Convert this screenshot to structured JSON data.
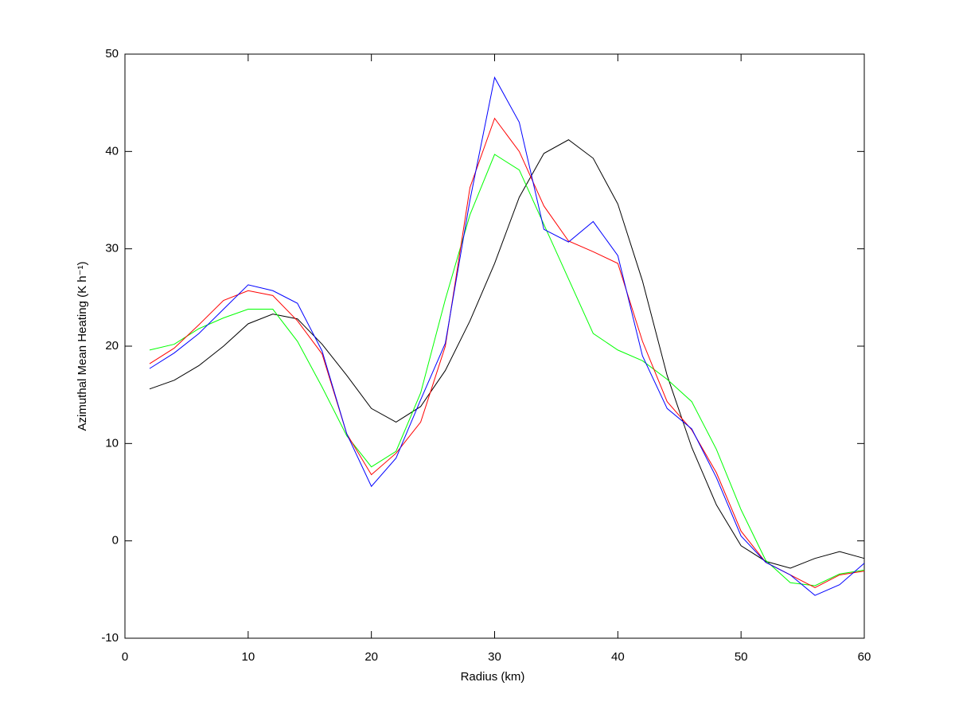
{
  "chart_data": {
    "type": "line",
    "x_label": "Radius (km)",
    "y_label": "Azimuthal Mean Heating (K h⁻¹)",
    "x": [
      2,
      4,
      6,
      8,
      10,
      12,
      14,
      16,
      18,
      20,
      22,
      24,
      26,
      28,
      30,
      32,
      34,
      36,
      38,
      40,
      42,
      44,
      46,
      48,
      50,
      52,
      54,
      56,
      58,
      60
    ],
    "series": [
      {
        "color": "#000000",
        "values": [
          15.6,
          16.5,
          18,
          20,
          22.3,
          23.3,
          22.8,
          20.2,
          17,
          13.6,
          12.2,
          13.8,
          17.5,
          22.6,
          28.5,
          35.3,
          39.8,
          41.2,
          39.3,
          34.6,
          26.7,
          17,
          9.6,
          3.7,
          -0.5,
          -2.1,
          -2.8,
          -1.8,
          -1.1,
          -1.8
        ]
      },
      {
        "color": "#00ff00",
        "values": [
          19.6,
          20.2,
          21.8,
          22.9,
          23.8,
          23.8,
          20.5,
          15.8,
          10.8,
          7.6,
          9.2,
          15.2,
          24.8,
          33.5,
          39.7,
          38.1,
          32.5,
          26.9,
          21.3,
          19.6,
          18.5,
          16.6,
          14.3,
          9.4,
          3.2,
          -2,
          -4.3,
          -4.6,
          -3.4,
          -3
        ]
      },
      {
        "color": "#ff0000",
        "values": [
          18.2,
          19.8,
          22.2,
          24.7,
          25.7,
          25.2,
          22.6,
          19.2,
          11,
          6.8,
          9,
          12.2,
          20,
          36.3,
          43.4,
          40,
          34.4,
          30.8,
          29.7,
          28.5,
          20.5,
          14.3,
          11.4,
          7,
          1,
          -2.2,
          -3.5,
          -4.8,
          -3.5,
          -3.1
        ]
      },
      {
        "color": "#0000ff",
        "values": [
          17.7,
          19.3,
          21.3,
          23.8,
          26.3,
          25.7,
          24.4,
          19.5,
          11,
          5.6,
          8.5,
          14.5,
          20.3,
          35,
          47.6,
          43,
          32,
          30.7,
          32.8,
          29.3,
          19,
          13.6,
          11.5,
          6.5,
          0.5,
          -2.2,
          -3.5,
          -5.6,
          -4.5,
          -2.3
        ]
      }
    ],
    "xlim": [
      0,
      60
    ],
    "xticks": [
      0,
      10,
      20,
      30,
      40,
      50,
      60
    ],
    "ylim": [
      -10,
      50
    ],
    "yticks": [
      -10,
      0,
      10,
      20,
      30,
      40,
      50
    ],
    "grid": false
  }
}
